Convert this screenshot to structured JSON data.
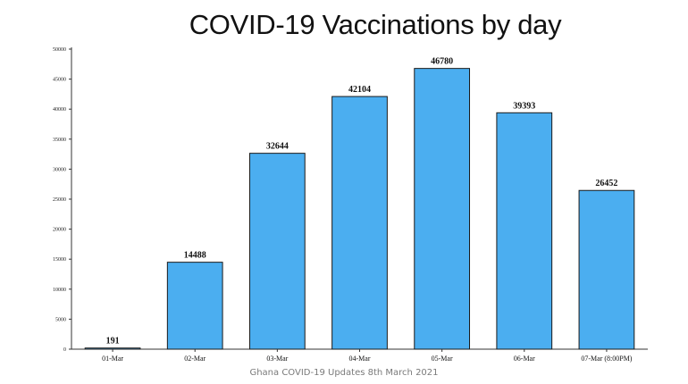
{
  "chart_data": {
    "type": "bar",
    "title": "COVID-19 Vaccinations by day",
    "xlabel": "",
    "ylabel": "",
    "categories": [
      "01-Mar",
      "02-Mar",
      "03-Mar",
      "04-Mar",
      "05-Mar",
      "06-Mar",
      "07-Mar (8:00PM)"
    ],
    "values": [
      191,
      14488,
      32644,
      42104,
      46780,
      39393,
      26452
    ],
    "data_labels": [
      "191",
      "14488",
      "32644",
      "42104",
      "46780",
      "39393",
      "26452"
    ],
    "yticks": [
      0,
      5000,
      10000,
      15000,
      20000,
      25000,
      30000,
      35000,
      40000,
      45000,
      50000
    ],
    "ylim": [
      0,
      50000
    ],
    "grid": false,
    "legend": "none",
    "colors": {
      "bar_fill": "#4baef0",
      "bar_stroke": "#1a1a1a",
      "axis": "#333333"
    }
  },
  "footer": {
    "caption": "Ghana COVID-19 Updates 8th March 2021"
  }
}
